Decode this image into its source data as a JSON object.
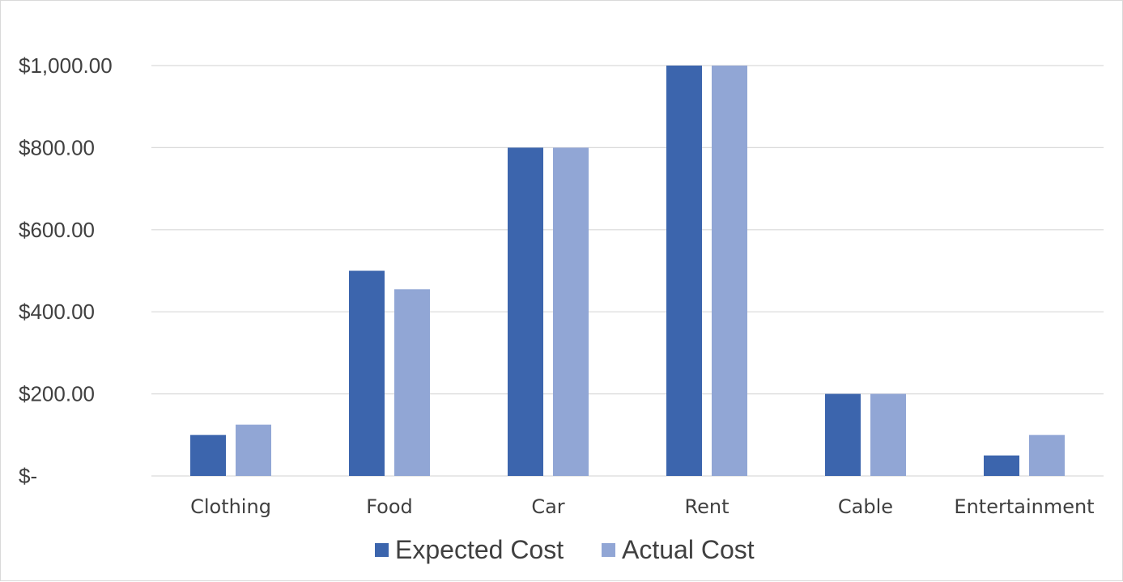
{
  "chart_data": {
    "type": "bar",
    "title": "",
    "xlabel": "",
    "ylabel": "",
    "categories": [
      "Clothing",
      "Food",
      "Car",
      "Rent",
      "Cable",
      "Entertainment"
    ],
    "series": [
      {
        "name": "Expected Cost",
        "values": [
          100,
          500,
          800,
          1000,
          200,
          50
        ],
        "color": "#3c65ad"
      },
      {
        "name": "Actual Cost",
        "values": [
          125,
          455,
          800,
          1000,
          200,
          100
        ],
        "color": "#91a6d5"
      }
    ],
    "ylim": [
      0,
      1100
    ],
    "yticks": [
      {
        "value": 0,
        "label": "$-"
      },
      {
        "value": 200,
        "label": "$200.00"
      },
      {
        "value": 400,
        "label": "$400.00"
      },
      {
        "value": 600,
        "label": "$600.00"
      },
      {
        "value": 800,
        "label": "$800.00"
      },
      {
        "value": 1000,
        "label": "$1,000.00"
      }
    ],
    "grid": true,
    "gridline_color": "#d9d9d9",
    "legend_position": "bottom"
  }
}
